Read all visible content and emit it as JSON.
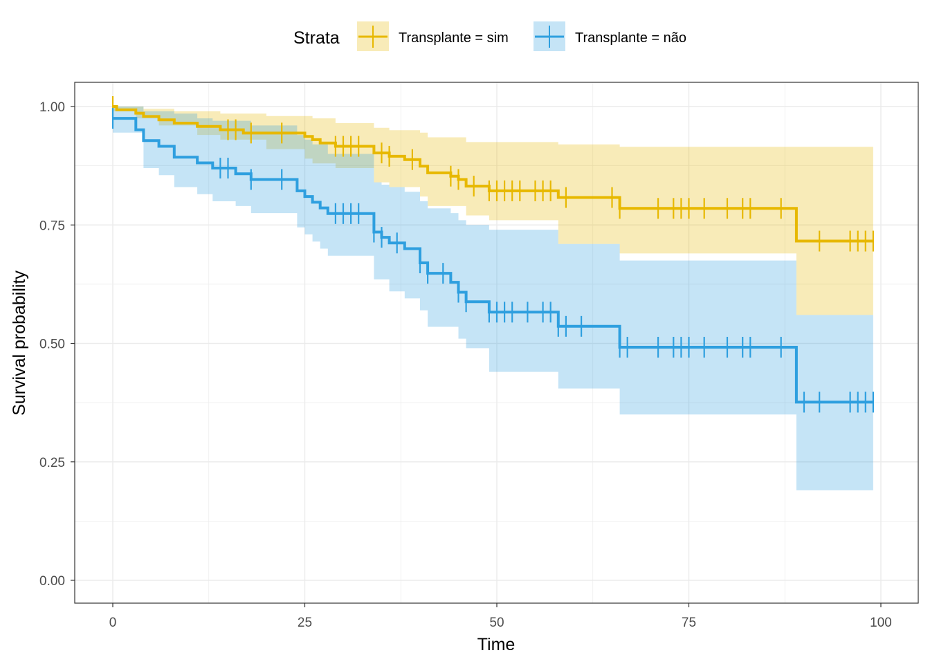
{
  "chart_data": {
    "type": "line",
    "subtype": "kaplan-meier-survival",
    "xlabel": "Time",
    "ylabel": "Survival probability",
    "xlim": [
      0,
      100
    ],
    "ylim": [
      0,
      1
    ],
    "x_ticks": [
      0,
      25,
      50,
      75,
      100
    ],
    "x_tick_labels": [
      "0",
      "25",
      "50",
      "75",
      "100"
    ],
    "y_ticks": [
      0,
      0.25,
      0.5,
      0.75,
      1
    ],
    "y_tick_labels": [
      "0.00",
      "0.25",
      "0.50",
      "0.75",
      "1.00"
    ],
    "grid": true,
    "legend": {
      "title": "Strata",
      "position": "top"
    },
    "series": [
      {
        "name": "Transplante = sim",
        "color": "#E7B800",
        "steps": [
          [
            0,
            1.0
          ],
          [
            0.5,
            0.993
          ],
          [
            3,
            0.986
          ],
          [
            4,
            0.979
          ],
          [
            6,
            0.972
          ],
          [
            8,
            0.965
          ],
          [
            11,
            0.958
          ],
          [
            14,
            0.951
          ],
          [
            17,
            0.944
          ],
          [
            20,
            0.944
          ],
          [
            25,
            0.937
          ],
          [
            26,
            0.93
          ],
          [
            27,
            0.923
          ],
          [
            29,
            0.916
          ],
          [
            34,
            0.902
          ],
          [
            36,
            0.895
          ],
          [
            38,
            0.888
          ],
          [
            40,
            0.874
          ],
          [
            41,
            0.86
          ],
          [
            44,
            0.853
          ],
          [
            45,
            0.846
          ],
          [
            46,
            0.832
          ],
          [
            49,
            0.822
          ],
          [
            58,
            0.808
          ],
          [
            66,
            0.785
          ],
          [
            89,
            0.716
          ],
          [
            99,
            0.716
          ]
        ],
        "upper": [
          [
            0,
            1.0
          ],
          [
            4,
            0.995
          ],
          [
            8,
            0.99
          ],
          [
            14,
            0.985
          ],
          [
            20,
            0.98
          ],
          [
            26,
            0.975
          ],
          [
            29,
            0.965
          ],
          [
            34,
            0.955
          ],
          [
            36,
            0.95
          ],
          [
            40,
            0.945
          ],
          [
            41,
            0.935
          ],
          [
            46,
            0.925
          ],
          [
            58,
            0.92
          ],
          [
            66,
            0.915
          ],
          [
            99,
            0.915
          ]
        ],
        "lower": [
          [
            0,
            0.99
          ],
          [
            3,
            0.975
          ],
          [
            6,
            0.96
          ],
          [
            11,
            0.94
          ],
          [
            14,
            0.93
          ],
          [
            20,
            0.91
          ],
          [
            25,
            0.89
          ],
          [
            26,
            0.88
          ],
          [
            29,
            0.87
          ],
          [
            34,
            0.84
          ],
          [
            36,
            0.83
          ],
          [
            40,
            0.81
          ],
          [
            41,
            0.79
          ],
          [
            46,
            0.77
          ],
          [
            49,
            0.76
          ],
          [
            58,
            0.71
          ],
          [
            66,
            0.69
          ],
          [
            89,
            0.56
          ],
          [
            99,
            0.56
          ]
        ],
        "censor_times": [
          0,
          15,
          16,
          18,
          22,
          29,
          30,
          31,
          32,
          35,
          36,
          39,
          44,
          45,
          47,
          49,
          50,
          51,
          52,
          53,
          55,
          56,
          57,
          59,
          65,
          66,
          71,
          73,
          74,
          75,
          77,
          80,
          82,
          83,
          87,
          92,
          96,
          97,
          98,
          99
        ]
      },
      {
        "name": "Transplante = não",
        "color": "#2E9FDF",
        "steps": [
          [
            0,
            0.975
          ],
          [
            3,
            0.951
          ],
          [
            4,
            0.928
          ],
          [
            6,
            0.916
          ],
          [
            8,
            0.893
          ],
          [
            11,
            0.881
          ],
          [
            13,
            0.87
          ],
          [
            16,
            0.858
          ],
          [
            18,
            0.846
          ],
          [
            24,
            0.822
          ],
          [
            25,
            0.81
          ],
          [
            26,
            0.798
          ],
          [
            27,
            0.786
          ],
          [
            28,
            0.774
          ],
          [
            34,
            0.735
          ],
          [
            35,
            0.724
          ],
          [
            36,
            0.712
          ],
          [
            38,
            0.7
          ],
          [
            40,
            0.67
          ],
          [
            41,
            0.648
          ],
          [
            44,
            0.629
          ],
          [
            45,
            0.608
          ],
          [
            46,
            0.588
          ],
          [
            49,
            0.566
          ],
          [
            58,
            0.536
          ],
          [
            66,
            0.492
          ],
          [
            89,
            0.376
          ],
          [
            99,
            0.376
          ]
        ],
        "upper": [
          [
            0,
            1.0
          ],
          [
            4,
            0.99
          ],
          [
            8,
            0.985
          ],
          [
            11,
            0.975
          ],
          [
            13,
            0.97
          ],
          [
            18,
            0.96
          ],
          [
            24,
            0.94
          ],
          [
            25,
            0.93
          ],
          [
            26,
            0.92
          ],
          [
            28,
            0.9
          ],
          [
            34,
            0.84
          ],
          [
            35,
            0.835
          ],
          [
            36,
            0.83
          ],
          [
            38,
            0.82
          ],
          [
            40,
            0.8
          ],
          [
            41,
            0.785
          ],
          [
            44,
            0.775
          ],
          [
            45,
            0.76
          ],
          [
            46,
            0.75
          ],
          [
            49,
            0.74
          ],
          [
            58,
            0.71
          ],
          [
            66,
            0.675
          ],
          [
            89,
            0.56
          ],
          [
            99,
            0.56
          ]
        ],
        "lower": [
          [
            0,
            0.945
          ],
          [
            4,
            0.87
          ],
          [
            6,
            0.855
          ],
          [
            8,
            0.83
          ],
          [
            11,
            0.815
          ],
          [
            13,
            0.8
          ],
          [
            16,
            0.79
          ],
          [
            18,
            0.775
          ],
          [
            24,
            0.745
          ],
          [
            25,
            0.73
          ],
          [
            26,
            0.715
          ],
          [
            27,
            0.7
          ],
          [
            28,
            0.685
          ],
          [
            34,
            0.635
          ],
          [
            36,
            0.61
          ],
          [
            38,
            0.595
          ],
          [
            40,
            0.57
          ],
          [
            41,
            0.535
          ],
          [
            45,
            0.51
          ],
          [
            46,
            0.49
          ],
          [
            49,
            0.44
          ],
          [
            58,
            0.405
          ],
          [
            66,
            0.35
          ],
          [
            89,
            0.19
          ],
          [
            99,
            0.19
          ]
        ],
        "censor_times": [
          0,
          14,
          15,
          18,
          22,
          29,
          30,
          31,
          32,
          34,
          35,
          37,
          40,
          41,
          43,
          45,
          46,
          49,
          50,
          51,
          52,
          54,
          56,
          57,
          58,
          59,
          61,
          66,
          67,
          71,
          73,
          74,
          75,
          77,
          80,
          82,
          83,
          87,
          90,
          92,
          96,
          97,
          98,
          99
        ]
      }
    ]
  }
}
